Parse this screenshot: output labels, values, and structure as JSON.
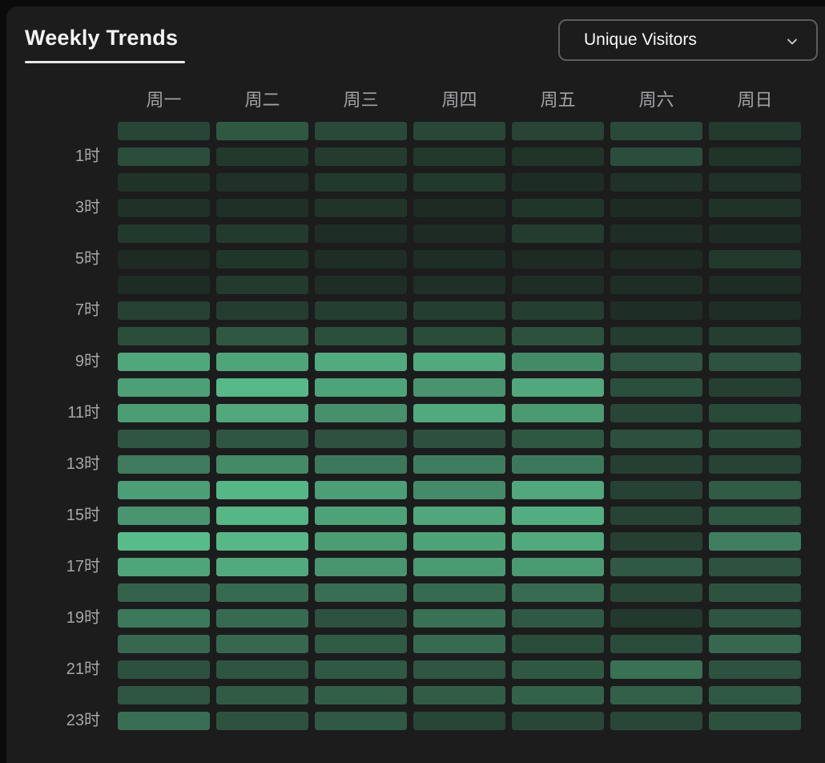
{
  "header": {
    "title": "Weekly Trends",
    "dropdown": {
      "selected": "Unique Visitors",
      "icon": "chevron-down"
    }
  },
  "chart_data": {
    "type": "heatmap",
    "title": "Weekly Trends",
    "metric": "Unique Visitors",
    "categories": [
      "周一",
      "周二",
      "周三",
      "周四",
      "周五",
      "周六",
      "周日"
    ],
    "hour_labels": [
      "",
      "1时",
      "",
      "3时",
      "",
      "5时",
      "",
      "7时",
      "",
      "9时",
      "",
      "11时",
      "",
      "13时",
      "",
      "15时",
      "",
      "17时",
      "",
      "19时",
      "",
      "21时",
      "",
      "23时"
    ],
    "value_note": "relative intensity 0-100 estimated from cell colors; rows are hours 0-23, columns Mon-Sun",
    "value_range": [
      0,
      100
    ],
    "color_scale": {
      "min": "#1c2a23",
      "max": "#58bd8b"
    },
    "grid": {
      "legend": false,
      "gaps": true
    },
    "values": [
      [
        19,
        31,
        22,
        20,
        18,
        22,
        11
      ],
      [
        24,
        10,
        12,
        10,
        7,
        24,
        7
      ],
      [
        6,
        5,
        10,
        10,
        2,
        5,
        5
      ],
      [
        5,
        4,
        7,
        1,
        8,
        1,
        6
      ],
      [
        10,
        11,
        3,
        1,
        12,
        3,
        2
      ],
      [
        1,
        8,
        3,
        3,
        1,
        1,
        10
      ],
      [
        2,
        11,
        3,
        4,
        3,
        3,
        2
      ],
      [
        16,
        13,
        14,
        14,
        14,
        3,
        3
      ],
      [
        24,
        31,
        25,
        23,
        27,
        13,
        14
      ],
      [
        85,
        84,
        88,
        87,
        65,
        29,
        28
      ],
      [
        80,
        97,
        83,
        72,
        86,
        25,
        15
      ],
      [
        78,
        86,
        70,
        87,
        76,
        19,
        21
      ],
      [
        30,
        30,
        28,
        27,
        31,
        26,
        23
      ],
      [
        56,
        65,
        54,
        57,
        54,
        15,
        17
      ],
      [
        79,
        95,
        79,
        67,
        86,
        16,
        33
      ],
      [
        73,
        95,
        82,
        85,
        90,
        17,
        31
      ],
      [
        99,
        96,
        78,
        82,
        87,
        15,
        58
      ],
      [
        84,
        87,
        73,
        76,
        76,
        32,
        28
      ],
      [
        39,
        44,
        46,
        44,
        45,
        20,
        28
      ],
      [
        54,
        44,
        28,
        48,
        32,
        10,
        29
      ],
      [
        42,
        42,
        33,
        44,
        23,
        23,
        42
      ],
      [
        27,
        29,
        32,
        30,
        31,
        48,
        28
      ],
      [
        30,
        34,
        36,
        35,
        38,
        37,
        32
      ],
      [
        46,
        28,
        32,
        19,
        20,
        20,
        27
      ]
    ]
  }
}
